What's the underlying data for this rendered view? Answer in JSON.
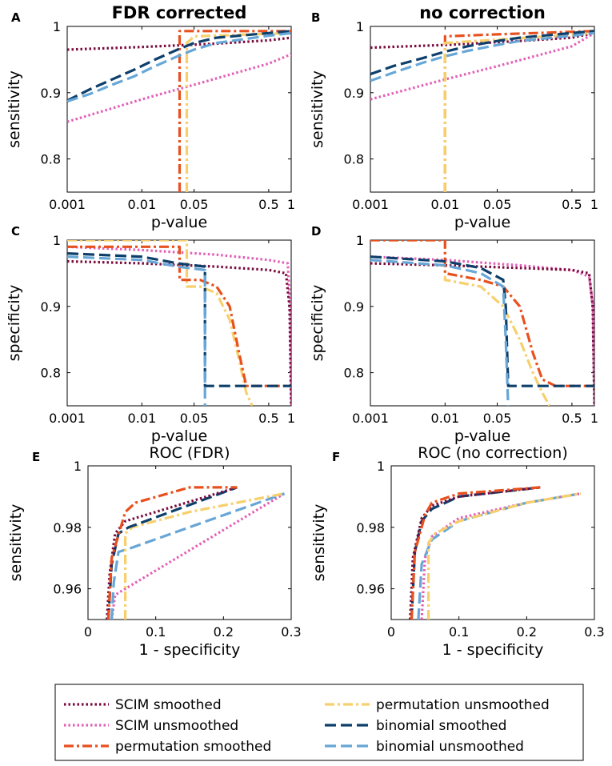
{
  "legend": [
    {
      "name": "SCIM smoothed",
      "key": "scim_s"
    },
    {
      "name": "SCIM unsmoothed",
      "key": "scim_u"
    },
    {
      "name": "permutation smoothed",
      "key": "perm_s"
    },
    {
      "name": "permutation unsmoothed",
      "key": "perm_u"
    },
    {
      "name": "binomial smoothed",
      "key": "binom_s"
    },
    {
      "name": "binomial unsmoothed",
      "key": "binom_u"
    }
  ],
  "styles": {
    "scim_s": {
      "color": "#7a0a3c",
      "dash": "dot"
    },
    "scim_u": {
      "color": "#e35fb5",
      "dash": "dot"
    },
    "perm_s": {
      "color": "#e8501e",
      "dash": "dashdot"
    },
    "perm_u": {
      "color": "#f7cf6c",
      "dash": "dashdot"
    },
    "binom_s": {
      "color": "#0d3f6b",
      "dash": "dash"
    },
    "binom_u": {
      "color": "#67a6d6",
      "dash": "dash"
    }
  },
  "chart_data": [
    {
      "panel": "A",
      "title": "FDR corrected",
      "title_bold": true,
      "type": "line",
      "xscale": "log",
      "xlim": [
        0.001,
        1
      ],
      "ylim": [
        0.75,
        1
      ],
      "xticks": [
        0.001,
        0.01,
        0.05,
        0.5,
        1
      ],
      "xticklabels": [
        "0.001",
        "0.01",
        "0.05",
        "0.5",
        "1"
      ],
      "yticks": [
        0.8,
        0.9,
        1
      ],
      "yticklabels": [
        "0.8",
        "0.9",
        "1"
      ],
      "xlabel": "p-value",
      "ylabel": "sensitivity",
      "series": [
        {
          "key": "scim_s",
          "x": [
            0.001,
            0.01,
            0.1,
            0.5,
            1
          ],
          "y": [
            0.965,
            0.969,
            0.974,
            0.979,
            0.983
          ]
        },
        {
          "key": "scim_u",
          "x": [
            0.001,
            0.01,
            0.05,
            0.5,
            1
          ],
          "y": [
            0.856,
            0.89,
            0.912,
            0.944,
            0.958
          ]
        },
        {
          "key": "perm_s",
          "x": [
            0.032,
            0.032,
            0.04,
            1
          ],
          "y": [
            0.75,
            0.993,
            0.993,
            0.993
          ]
        },
        {
          "key": "perm_u",
          "x": [
            0.04,
            0.04,
            0.05,
            1
          ],
          "y": [
            0.75,
            0.975,
            0.985,
            0.99
          ]
        },
        {
          "key": "binom_s",
          "x": [
            0.001,
            0.002,
            0.004,
            0.008,
            0.015,
            0.03,
            0.05,
            0.1,
            0.5,
            1
          ],
          "y": [
            0.888,
            0.905,
            0.92,
            0.935,
            0.95,
            0.965,
            0.975,
            0.983,
            0.99,
            0.993
          ]
        },
        {
          "key": "binom_u",
          "x": [
            0.001,
            0.002,
            0.004,
            0.008,
            0.015,
            0.03,
            0.05,
            0.1,
            0.5,
            1
          ],
          "y": [
            0.887,
            0.898,
            0.912,
            0.925,
            0.94,
            0.955,
            0.965,
            0.975,
            0.986,
            0.99
          ]
        }
      ]
    },
    {
      "panel": "B",
      "title": "no correction",
      "title_bold": true,
      "type": "line",
      "xscale": "log",
      "xlim": [
        0.001,
        1
      ],
      "ylim": [
        0.75,
        1
      ],
      "xticks": [
        0.001,
        0.01,
        0.05,
        0.5,
        1
      ],
      "xticklabels": [
        "0.001",
        "0.01",
        "0.05",
        "0.5",
        "1"
      ],
      "yticks": [
        0.8,
        0.9,
        1
      ],
      "yticklabels": [
        "0.8",
        "0.9",
        "1"
      ],
      "xlabel": "p-value",
      "ylabel": "sensitivity",
      "series": [
        {
          "key": "scim_s",
          "x": [
            0.001,
            0.01,
            0.1,
            0.5,
            1
          ],
          "y": [
            0.968,
            0.972,
            0.978,
            0.983,
            0.99
          ]
        },
        {
          "key": "scim_u",
          "x": [
            0.001,
            0.01,
            0.05,
            0.5,
            1
          ],
          "y": [
            0.89,
            0.92,
            0.94,
            0.97,
            0.99
          ]
        },
        {
          "key": "perm_s",
          "x": [
            0.01,
            0.01,
            0.05,
            1
          ],
          "y": [
            0.75,
            0.985,
            0.988,
            0.993
          ]
        },
        {
          "key": "perm_u",
          "x": [
            0.01,
            0.01,
            0.05,
            1
          ],
          "y": [
            0.75,
            0.975,
            0.98,
            0.99
          ]
        },
        {
          "key": "binom_s",
          "x": [
            0.001,
            0.002,
            0.005,
            0.01,
            0.02,
            0.05,
            0.1,
            0.5,
            1
          ],
          "y": [
            0.928,
            0.94,
            0.952,
            0.962,
            0.97,
            0.978,
            0.983,
            0.99,
            0.993
          ]
        },
        {
          "key": "binom_u",
          "x": [
            0.001,
            0.002,
            0.005,
            0.01,
            0.02,
            0.05,
            0.1,
            0.5,
            1
          ],
          "y": [
            0.918,
            0.93,
            0.945,
            0.955,
            0.963,
            0.972,
            0.978,
            0.986,
            0.99
          ]
        }
      ]
    },
    {
      "panel": "C",
      "title": "",
      "type": "line",
      "xscale": "log",
      "xlim": [
        0.001,
        1
      ],
      "ylim": [
        0.75,
        1
      ],
      "xticks": [
        0.001,
        0.01,
        0.05,
        0.5,
        1
      ],
      "xticklabels": [
        "0.001",
        "0.01",
        "0.05",
        "0.5",
        "1"
      ],
      "yticks": [
        0.8,
        0.9,
        1
      ],
      "yticklabels": [
        "0.8",
        "0.9",
        "1"
      ],
      "xlabel": "p-value",
      "ylabel": "specificity",
      "series": [
        {
          "key": "scim_u",
          "x": [
            0.001,
            0.01,
            0.1,
            0.5,
            0.9,
            0.97,
            1
          ],
          "y": [
            0.99,
            0.985,
            0.978,
            0.97,
            0.965,
            0.9,
            0.75
          ]
        },
        {
          "key": "scim_s",
          "x": [
            0.001,
            0.01,
            0.1,
            0.5,
            0.85,
            0.95,
            1
          ],
          "y": [
            0.968,
            0.965,
            0.96,
            0.955,
            0.95,
            0.9,
            0.75
          ]
        },
        {
          "key": "perm_u",
          "x": [
            0.001,
            0.04,
            0.04,
            0.06,
            0.1,
            0.15,
            0.2,
            0.25,
            0.3
          ],
          "y": [
            1,
            1,
            0.93,
            0.93,
            0.92,
            0.88,
            0.82,
            0.77,
            0.75
          ]
        },
        {
          "key": "perm_s",
          "x": [
            0.001,
            0.032,
            0.032,
            0.06,
            0.1,
            0.15,
            0.2,
            0.25,
            0.3,
            1
          ],
          "y": [
            0.99,
            0.99,
            0.94,
            0.94,
            0.93,
            0.9,
            0.83,
            0.78,
            0.78,
            0.78
          ]
        },
        {
          "key": "binom_s",
          "x": [
            0.001,
            0.01,
            0.03,
            0.07,
            0.07,
            1
          ],
          "y": [
            0.98,
            0.975,
            0.965,
            0.96,
            0.78,
            0.78
          ]
        },
        {
          "key": "binom_u",
          "x": [
            0.001,
            0.01,
            0.03,
            0.07,
            0.07
          ],
          "y": [
            0.975,
            0.97,
            0.96,
            0.955,
            0.75
          ]
        }
      ]
    },
    {
      "panel": "D",
      "title": "",
      "type": "line",
      "xscale": "log",
      "xlim": [
        0.001,
        1
      ],
      "ylim": [
        0.75,
        1
      ],
      "xticks": [
        0.001,
        0.01,
        0.05,
        0.5,
        1
      ],
      "xticklabels": [
        "0.001",
        "0.01",
        "0.05",
        "0.5",
        "1"
      ],
      "yticks": [
        0.8,
        0.9,
        1
      ],
      "yticklabels": [
        "0.8",
        "0.9",
        "1"
      ],
      "xlabel": "p-value",
      "ylabel": "specificity",
      "series": [
        {
          "key": "scim_u",
          "x": [
            0.001,
            0.01,
            0.1,
            0.5,
            0.85,
            0.96,
            1
          ],
          "y": [
            0.975,
            0.97,
            0.962,
            0.955,
            0.945,
            0.9,
            0.75
          ]
        },
        {
          "key": "scim_s",
          "x": [
            0.001,
            0.01,
            0.1,
            0.5,
            0.85,
            0.95,
            1
          ],
          "y": [
            0.965,
            0.962,
            0.958,
            0.955,
            0.95,
            0.9,
            0.75
          ]
        },
        {
          "key": "perm_u",
          "x": [
            0.001,
            0.01,
            0.01,
            0.03,
            0.06,
            0.1,
            0.15,
            0.2,
            0.25
          ],
          "y": [
            1,
            1,
            0.94,
            0.93,
            0.9,
            0.85,
            0.8,
            0.77,
            0.75
          ]
        },
        {
          "key": "perm_s",
          "x": [
            0.001,
            0.01,
            0.01,
            0.03,
            0.06,
            0.1,
            0.15,
            0.2,
            0.3,
            1
          ],
          "y": [
            1,
            1,
            0.95,
            0.94,
            0.93,
            0.9,
            0.83,
            0.79,
            0.78,
            0.78
          ]
        },
        {
          "key": "binom_s",
          "x": [
            0.001,
            0.01,
            0.03,
            0.06,
            0.065,
            0.07,
            1
          ],
          "y": [
            0.975,
            0.968,
            0.958,
            0.94,
            0.9,
            0.78,
            0.78
          ]
        },
        {
          "key": "binom_u",
          "x": [
            0.001,
            0.01,
            0.03,
            0.06,
            0.065,
            0.07
          ],
          "y": [
            0.97,
            0.962,
            0.95,
            0.93,
            0.85,
            0.75
          ]
        }
      ]
    },
    {
      "panel": "E",
      "title": "ROC (FDR)",
      "type": "line",
      "xscale": "linear",
      "xlim": [
        0,
        0.3
      ],
      "ylim": [
        0.95,
        1
      ],
      "xticks": [
        0,
        0.1,
        0.2,
        0.3
      ],
      "xticklabels": [
        "0",
        "0.1",
        "0.2",
        "0.3"
      ],
      "yticks": [
        0.96,
        0.98,
        1
      ],
      "yticklabels": [
        "0.96",
        "0.98",
        "1"
      ],
      "xlabel": "1 - specificity",
      "ylabel": "sensitivity",
      "series": [
        {
          "key": "scim_u",
          "x": [
            0.035,
            0.04,
            0.055,
            0.29
          ],
          "y": [
            0.95,
            0.958,
            0.96,
            0.991
          ]
        },
        {
          "key": "binom_u",
          "x": [
            0.035,
            0.038,
            0.045,
            0.06,
            0.29
          ],
          "y": [
            0.95,
            0.962,
            0.972,
            0.973,
            0.991
          ]
        },
        {
          "key": "perm_u",
          "x": [
            0.055,
            0.055,
            0.065,
            0.15,
            0.29
          ],
          "y": [
            0.95,
            0.978,
            0.98,
            0.985,
            0.991
          ]
        },
        {
          "key": "binom_s",
          "x": [
            0.03,
            0.035,
            0.045,
            0.06,
            0.22
          ],
          "y": [
            0.95,
            0.968,
            0.978,
            0.98,
            0.993
          ]
        },
        {
          "key": "scim_s",
          "x": [
            0.028,
            0.032,
            0.04,
            0.055,
            0.22
          ],
          "y": [
            0.95,
            0.965,
            0.978,
            0.982,
            0.993
          ]
        },
        {
          "key": "perm_s",
          "x": [
            0.03,
            0.035,
            0.055,
            0.07,
            0.15,
            0.22
          ],
          "y": [
            0.95,
            0.97,
            0.985,
            0.988,
            0.993,
            0.993
          ]
        }
      ]
    },
    {
      "panel": "F",
      "title": "ROC (no correction)",
      "type": "line",
      "xscale": "linear",
      "xlim": [
        0,
        0.3
      ],
      "ylim": [
        0.95,
        1
      ],
      "xticks": [
        0,
        0.1,
        0.2,
        0.3
      ],
      "xticklabels": [
        "0",
        "0.1",
        "0.2",
        "0.3"
      ],
      "yticks": [
        0.96,
        0.98,
        1
      ],
      "yticklabels": [
        "0.96",
        "0.98",
        "1"
      ],
      "xlabel": "1 - specificity",
      "ylabel": "sensitivity",
      "series": [
        {
          "key": "scim_u",
          "x": [
            0.045,
            0.05,
            0.06,
            0.1,
            0.2,
            0.28
          ],
          "y": [
            0.95,
            0.97,
            0.977,
            0.983,
            0.988,
            0.991
          ]
        },
        {
          "key": "binom_u",
          "x": [
            0.04,
            0.045,
            0.06,
            0.1,
            0.2,
            0.28
          ],
          "y": [
            0.95,
            0.968,
            0.976,
            0.982,
            0.988,
            0.991
          ]
        },
        {
          "key": "perm_u",
          "x": [
            0.055,
            0.055,
            0.065,
            0.1,
            0.2,
            0.28
          ],
          "y": [
            0.95,
            0.975,
            0.978,
            0.982,
            0.988,
            0.991
          ]
        },
        {
          "key": "binom_s",
          "x": [
            0.03,
            0.035,
            0.045,
            0.06,
            0.1,
            0.22
          ],
          "y": [
            0.95,
            0.972,
            0.982,
            0.986,
            0.99,
            0.993
          ]
        },
        {
          "key": "scim_s",
          "x": [
            0.028,
            0.032,
            0.045,
            0.06,
            0.1,
            0.22
          ],
          "y": [
            0.95,
            0.97,
            0.983,
            0.987,
            0.99,
            0.993
          ]
        },
        {
          "key": "perm_s",
          "x": [
            0.03,
            0.035,
            0.05,
            0.06,
            0.1,
            0.22
          ],
          "y": [
            0.95,
            0.972,
            0.984,
            0.988,
            0.991,
            0.993
          ]
        }
      ]
    }
  ]
}
